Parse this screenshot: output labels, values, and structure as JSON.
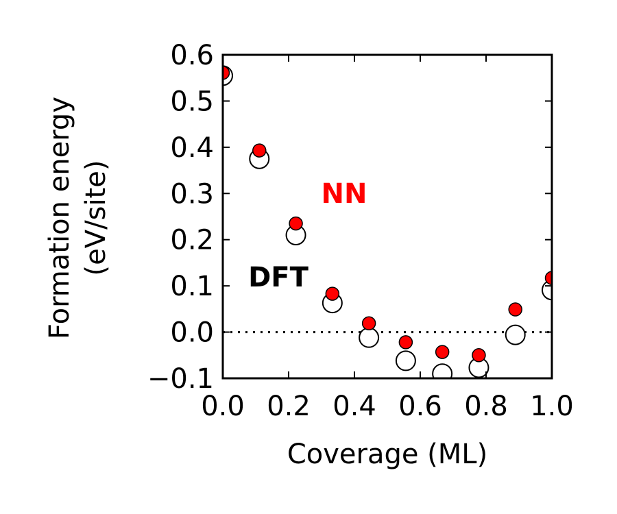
{
  "chart_data": {
    "type": "scatter",
    "xlabel": "Coverage (ML)",
    "ylabel_line1": "Formation energy",
    "ylabel_line2": "(eV/site)",
    "xlim": [
      0.0,
      1.0
    ],
    "ylim": [
      -0.1,
      0.6
    ],
    "x_ticks": [
      0.0,
      0.2,
      0.4,
      0.6,
      0.8,
      1.0
    ],
    "x_tick_labels": [
      "0.0",
      "0.2",
      "0.4",
      "0.6",
      "0.8",
      "1.0"
    ],
    "y_ticks": [
      -0.1,
      0.0,
      0.1,
      0.2,
      0.3,
      0.4,
      0.5,
      0.6
    ],
    "y_tick_labels": [
      "−0.1",
      "0.0",
      "0.1",
      "0.2",
      "0.3",
      "0.4",
      "0.5",
      "0.6"
    ],
    "grid": false,
    "reference_line": {
      "y": 0.0,
      "style": "dotted"
    },
    "series": [
      {
        "name": "DFT",
        "marker": "open-circle",
        "color": "#000000",
        "x": [
          0.0,
          0.111,
          0.222,
          0.333,
          0.444,
          0.556,
          0.667,
          0.778,
          0.889,
          1.0
        ],
        "values": [
          0.555,
          0.375,
          0.21,
          0.063,
          -0.012,
          -0.062,
          -0.09,
          -0.077,
          -0.006,
          0.091
        ]
      },
      {
        "name": "NN",
        "marker": "filled-circle",
        "color": "#ff0000",
        "x": [
          0.0,
          0.111,
          0.222,
          0.333,
          0.444,
          0.556,
          0.667,
          0.778,
          0.889,
          1.0
        ],
        "values": [
          0.561,
          0.393,
          0.235,
          0.083,
          0.019,
          -0.022,
          -0.043,
          -0.05,
          0.049,
          0.117
        ]
      }
    ]
  }
}
